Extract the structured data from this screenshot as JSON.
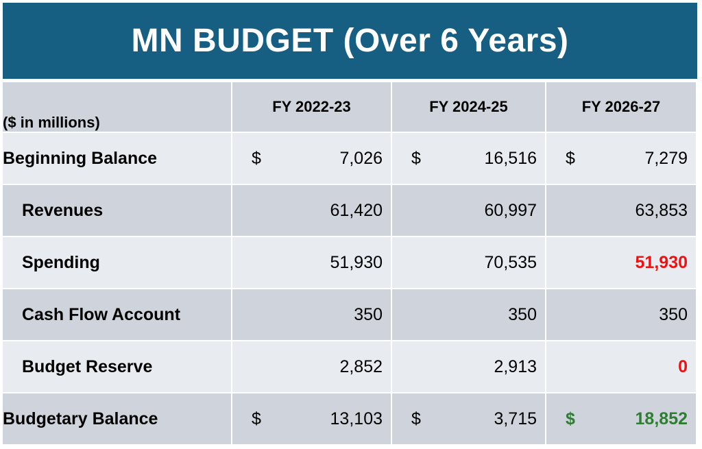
{
  "title": "MN BUDGET (Over 6 Years)",
  "unit_note": "($ in millions)",
  "columns": [
    "FY 2022-23",
    "FY 2024-25",
    "FY 2026-27"
  ],
  "currency": "$",
  "rows": [
    {
      "label": "Beginning Balance",
      "values": [
        "7,026",
        "16,516",
        "7,279"
      ]
    },
    {
      "label": "Revenues",
      "values": [
        "61,420",
        "60,997",
        "63,853"
      ]
    },
    {
      "label": "Spending",
      "values": [
        "51,930",
        "70,535",
        "51,930"
      ]
    },
    {
      "label": "Cash Flow Account",
      "values": [
        "350",
        "350",
        "350"
      ]
    },
    {
      "label": "Budget Reserve",
      "values": [
        "2,852",
        "2,913",
        "0"
      ]
    },
    {
      "label": "Budgetary Balance",
      "values": [
        "13,103",
        "3,715",
        "18,852"
      ]
    }
  ],
  "colors": {
    "header_bg": "#175f82",
    "row_dark": "#cfd4dc",
    "row_light": "#e8ebf0",
    "highlight_red": "#ee1111",
    "highlight_green": "#2e7d32"
  }
}
